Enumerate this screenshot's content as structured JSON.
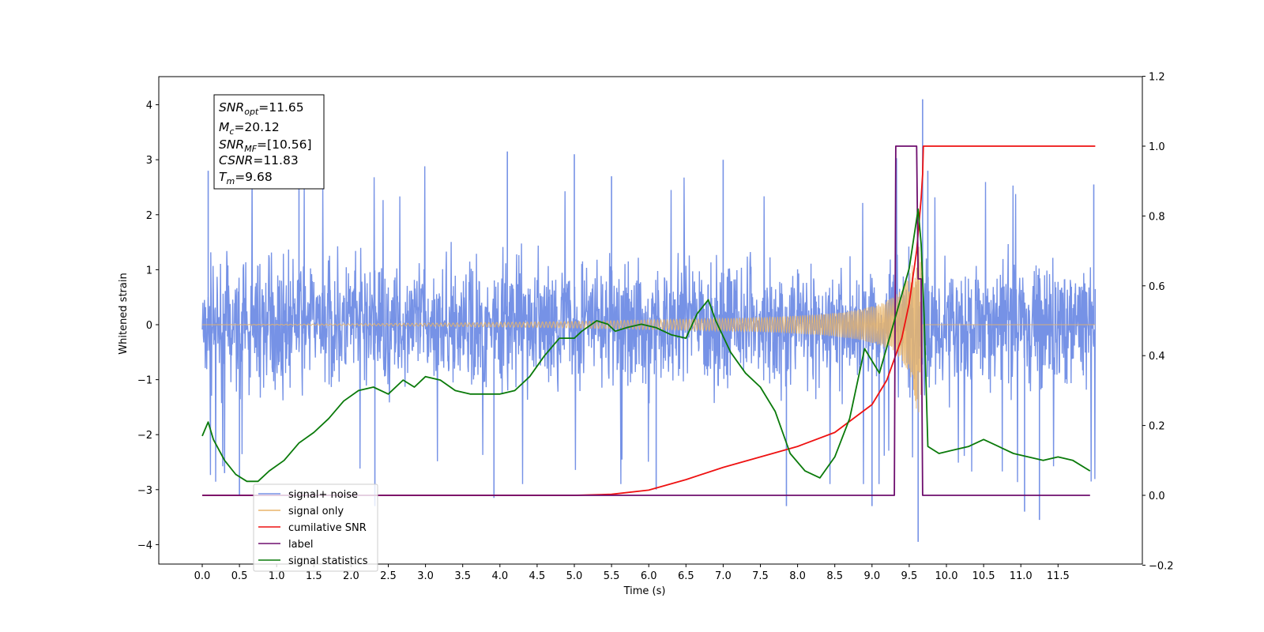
{
  "chart_data": {
    "type": "line",
    "xlabel": "Time (s)",
    "ylabel": "Whitened strain",
    "xlim": [
      -0.6,
      12.6
    ],
    "ylim": [
      -4.4,
      4.5
    ],
    "y2lim": [
      -0.2,
      1.2
    ],
    "x_ticks": [
      "0.0",
      "0.5",
      "1.0",
      "1.5",
      "2.0",
      "2.5",
      "3.0",
      "3.5",
      "4.0",
      "4.5",
      "5.0",
      "5.5",
      "6.0",
      "6.5",
      "7.0",
      "7.5",
      "8.0",
      "8.5",
      "9.0",
      "9.5",
      "10.0",
      "10.5",
      "11.0",
      "11.5"
    ],
    "y_ticks": [
      "4",
      "3",
      "2",
      "1",
      "0",
      "−1",
      "−2",
      "−3",
      "−4"
    ],
    "y2_ticks": [
      "1.2",
      "1.0",
      "0.8",
      "0.6",
      "0.4",
      "0.2",
      "0.0",
      "−0.2"
    ],
    "annotation": {
      "lines": [
        {
          "base": "SNR",
          "sub": "opt",
          "value": "=11.65"
        },
        {
          "base": "M",
          "sub": "c",
          "value": "=20.12"
        },
        {
          "base": "SNR",
          "sub": "MF",
          "value": "=[10.56]"
        },
        {
          "base": "CSNR",
          "sub": "",
          "value": "=11.83"
        },
        {
          "base": "T",
          "sub": "m",
          "value": "=9.68"
        }
      ]
    },
    "legend_position": "lower-left",
    "series": [
      {
        "name": "signal+ noise",
        "color": "#7692e6",
        "axis": "left",
        "description": "noise: band between about -2 and +2 with peaks reaching about 3.2, dip to -3.9 and peak 4.1 near t=9.65",
        "envelope": {
          "x": [
            0,
            12
          ],
          "hi": [
            1.6,
            1.6
          ],
          "lo": [
            -1.8,
            -1.8
          ]
        },
        "spikes": [
          [
            0.08,
            2.8
          ],
          [
            0.3,
            -2.7
          ],
          [
            0.5,
            -3.1
          ],
          [
            1.3,
            2.5
          ],
          [
            2.32,
            -3.3
          ],
          [
            3.92,
            -3.15
          ],
          [
            4.1,
            3.15
          ],
          [
            5.0,
            3.1
          ],
          [
            5.5,
            2.7
          ],
          [
            6.1,
            -3.0
          ],
          [
            7.0,
            3.0
          ],
          [
            7.85,
            -3.3
          ],
          [
            9.0,
            -3.3
          ],
          [
            9.62,
            -3.95
          ],
          [
            9.68,
            4.1
          ],
          [
            9.75,
            2.8
          ],
          [
            11.05,
            -3.4
          ],
          [
            11.25,
            -3.55
          ],
          [
            11.98,
            2.55
          ]
        ]
      },
      {
        "name": "signal only",
        "color": "#e8b46a",
        "axis": "left",
        "description": "chirp waveform growing until merger at t=9.68",
        "merger_time": 9.68
      },
      {
        "name": "cumilative SNR",
        "color": "#ee1111",
        "axis": "right",
        "x": [
          0.0,
          5.0,
          5.5,
          6.0,
          6.5,
          7.0,
          7.5,
          8.0,
          8.5,
          9.0,
          9.2,
          9.4,
          9.5,
          9.6,
          9.66,
          9.68,
          9.69,
          12.0
        ],
        "y": [
          0.0,
          0.0,
          0.003,
          0.015,
          0.045,
          0.08,
          0.11,
          0.14,
          0.18,
          0.26,
          0.33,
          0.45,
          0.55,
          0.7,
          0.85,
          0.92,
          1.0,
          1.0
        ]
      },
      {
        "name": "label",
        "color": "#6e0e6e",
        "axis": "right",
        "x": [
          0.0,
          9.3,
          9.32,
          9.6,
          9.62,
          9.66,
          9.68,
          11.93
        ],
        "y": [
          0.0,
          0.0,
          1.0,
          1.0,
          0.62,
          0.62,
          0.0,
          0.0
        ]
      },
      {
        "name": "signal statistics",
        "color": "#0a7a0a",
        "axis": "right",
        "x": [
          0.0,
          0.08,
          0.15,
          0.3,
          0.45,
          0.6,
          0.75,
          0.9,
          1.1,
          1.3,
          1.5,
          1.7,
          1.9,
          2.1,
          2.3,
          2.5,
          2.7,
          2.85,
          3.0,
          3.2,
          3.4,
          3.6,
          3.8,
          4.0,
          4.2,
          4.4,
          4.6,
          4.8,
          5.0,
          5.1,
          5.3,
          5.45,
          5.55,
          5.7,
          5.9,
          6.1,
          6.3,
          6.5,
          6.65,
          6.8,
          6.9,
          7.1,
          7.3,
          7.5,
          7.7,
          7.9,
          8.1,
          8.3,
          8.5,
          8.7,
          8.9,
          9.1,
          9.3,
          9.5,
          9.62,
          9.66,
          9.7,
          9.75,
          9.9,
          10.1,
          10.3,
          10.5,
          10.7,
          10.9,
          11.1,
          11.3,
          11.5,
          11.7,
          11.93
        ],
        "y": [
          0.17,
          0.21,
          0.16,
          0.1,
          0.06,
          0.04,
          0.04,
          0.07,
          0.1,
          0.15,
          0.18,
          0.22,
          0.27,
          0.3,
          0.31,
          0.29,
          0.33,
          0.31,
          0.34,
          0.33,
          0.3,
          0.29,
          0.29,
          0.29,
          0.3,
          0.34,
          0.4,
          0.45,
          0.45,
          0.47,
          0.5,
          0.49,
          0.47,
          0.48,
          0.49,
          0.48,
          0.46,
          0.45,
          0.52,
          0.56,
          0.5,
          0.41,
          0.35,
          0.31,
          0.24,
          0.12,
          0.07,
          0.05,
          0.11,
          0.22,
          0.42,
          0.35,
          0.5,
          0.65,
          0.82,
          0.72,
          0.52,
          0.14,
          0.12,
          0.13,
          0.14,
          0.16,
          0.14,
          0.12,
          0.11,
          0.1,
          0.11,
          0.1,
          0.07
        ]
      }
    ]
  }
}
